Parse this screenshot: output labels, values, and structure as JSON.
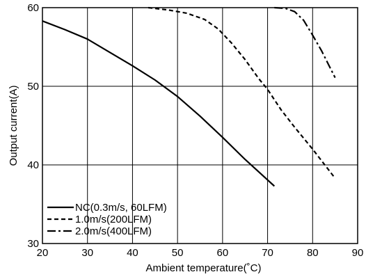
{
  "chart_data": {
    "type": "line",
    "title": "",
    "xlabel": "Ambient temperature(˚C)",
    "ylabel": "Output current(A)",
    "xlim": [
      20,
      90
    ],
    "ylim": [
      30,
      60
    ],
    "xticks": [
      "20",
      "30",
      "40",
      "50",
      "60",
      "70",
      "80",
      "90"
    ],
    "yticks": [
      "30",
      "40",
      "50",
      "60"
    ],
    "grid": true,
    "legend_position": "bottom-left",
    "series": [
      {
        "name": "NC(0.3m/s, 60LFM)",
        "style": "solid",
        "color": "#000000",
        "x": [
          20,
          25,
          30,
          35,
          40,
          45,
          50,
          55,
          60,
          65,
          71.5
        ],
        "y": [
          58.3,
          57.2,
          56.0,
          54.3,
          52.6,
          50.8,
          48.7,
          46.2,
          43.5,
          40.7,
          37.3
        ]
      },
      {
        "name": "1.0m/s(200LFM)",
        "style": "dashed",
        "color": "#000000",
        "x": [
          43.5,
          48,
          52,
          56,
          59,
          62,
          65,
          68,
          70,
          73,
          76,
          80,
          85
        ],
        "y": [
          60.0,
          59.7,
          59.3,
          58.5,
          57.3,
          55.5,
          53.4,
          51.0,
          49.6,
          47.0,
          44.8,
          42.0,
          38.3
        ]
      },
      {
        "name": "2.0m/s(400LFM)",
        "style": "dashdot",
        "color": "#000000",
        "x": [
          71.5,
          74,
          76,
          78,
          80,
          82,
          85
        ],
        "y": [
          60.0,
          59.9,
          59.5,
          58.4,
          56.5,
          54.5,
          51.1
        ]
      }
    ]
  }
}
